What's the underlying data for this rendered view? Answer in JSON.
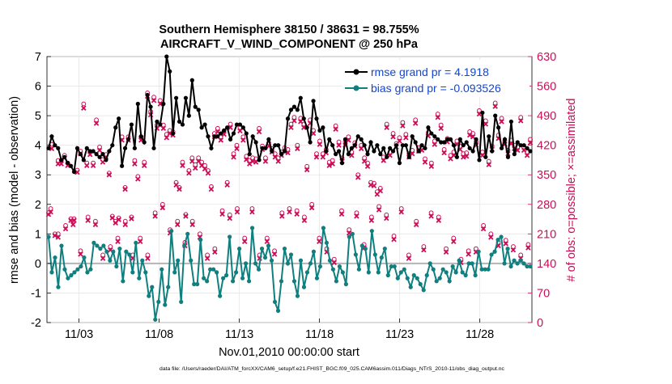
{
  "chart_data": {
    "type": "line",
    "title_line1": "Southern Hemisphere 38150 / 38631 = 98.755%",
    "title_line2": "AIRCRAFT_V_WIND_COMPONENT @ 250 hPa",
    "xlabel": "Nov.01,2010 00:00:00 start",
    "ylabel_left": "rmse and bias (model - observation)",
    "ylabel_right": "# of obs: o=possible; ×=assimilated",
    "footer": "data file: /Users/raeder/DAI/ATM_forcXX/CAM6_setup/f.e21.FHIST_BGC.f09_025.CAM6assim.011/Diags_NTrS_2010-11/obs_diag_output.nc",
    "x_ticks": [
      {
        "day": 3,
        "label": "11/03"
      },
      {
        "day": 8,
        "label": "11/08"
      },
      {
        "day": 13,
        "label": "11/13"
      },
      {
        "day": 18,
        "label": "11/18"
      },
      {
        "day": 23,
        "label": "11/23"
      },
      {
        "day": 28,
        "label": "11/28"
      }
    ],
    "xlim": [
      1,
      31.25
    ],
    "ylim_left": [
      -2,
      7
    ],
    "yticks_left": [
      "-2",
      "-1",
      "0",
      "1",
      "2",
      "3",
      "4",
      "5",
      "6",
      "7"
    ],
    "ylim_right": [
      0,
      630
    ],
    "yticks_right": [
      "0",
      "70",
      "140",
      "210",
      "280",
      "350",
      "420",
      "490",
      "560",
      "630"
    ],
    "colors": {
      "rmse": "#000000",
      "bias": "#0f7f7f",
      "obs": "#cc0e57",
      "legend_text": "#1146d4",
      "zero_line": "#b4b4b4",
      "grid": "#e6e6e6"
    },
    "series": [
      {
        "name": "rmse grand pr = 4.1918",
        "values": [
          3.9,
          4.3,
          4.0,
          3.9,
          3.5,
          3.6,
          3.4,
          3.3,
          3.1,
          3.9,
          3.7,
          3.5,
          3.9,
          3.8,
          3.8,
          3.7,
          3.6,
          3.7,
          3.5,
          3.8,
          4.0,
          4.6,
          4.9,
          3.3,
          3.9,
          4.2,
          4.7,
          3.9,
          5.4,
          4.3,
          4.1,
          5.7,
          5.3,
          3.9,
          4.8,
          4.7,
          5.4,
          7.0,
          6.5,
          4.4,
          5.6,
          4.8,
          4.7,
          5.6,
          5.0,
          6.2,
          5.3,
          5.2,
          4.6,
          4.7,
          4.3,
          3.9,
          4.3,
          4.3,
          4.4,
          4.5,
          4.6,
          4.2,
          4.4,
          4.7,
          4.7,
          4.6,
          4.4,
          3.7,
          4.3,
          4.1,
          3.5,
          3.9,
          3.9,
          4.2,
          3.8,
          4.0,
          4.0,
          3.7,
          3.8,
          4.9,
          5.2,
          5.3,
          5.2,
          5.6,
          4.9,
          4.6,
          4.1,
          5.5,
          4.9,
          4.5,
          4.6,
          3.8,
          4.2,
          4.0,
          3.7,
          3.8,
          3.4,
          4.2,
          3.7,
          3.9,
          4.0,
          4.3,
          4.2,
          4.0,
          3.7,
          4.1,
          3.8,
          4.0,
          3.7,
          3.9,
          3.6,
          3.9,
          3.8,
          4.0,
          3.4,
          4.0,
          4.0,
          3.6,
          4.3,
          4.1,
          3.8,
          4.0,
          3.9,
          4.6,
          4.4,
          4.3,
          4.2,
          4.1,
          4.1,
          4.2,
          4.2,
          4.0,
          3.6,
          4.2,
          4.0,
          4.1,
          3.9,
          3.8,
          4.2,
          3.5,
          5.1,
          3.6,
          4.3,
          3.8,
          5.0,
          4.6,
          3.9,
          4.2,
          3.6,
          4.8,
          3.7,
          4.1,
          4.0,
          4.0,
          3.9,
          3.8
        ]
      },
      {
        "name": "bias grand pr = -0.093526",
        "values": [
          0.9,
          -0.3,
          0.2,
          -0.8,
          0.6,
          -0.2,
          -0.5,
          -0.4,
          -0.3,
          -0.2,
          -0.1,
          0.2,
          -0.3,
          -0.2,
          0.7,
          0.6,
          0.5,
          0.6,
          0.4,
          0.1,
          0.4,
          -0.1,
          0.5,
          -0.6,
          0.4,
          0.3,
          -0.3,
          0.7,
          -0.5,
          0.1,
          -0.3,
          -1.1,
          -0.8,
          -1.9,
          -1.3,
          -0.2,
          -1.4,
          -0.8,
          1.1,
          -0.3,
          0.1,
          -1.3,
          0.6,
          1.0,
          0.1,
          -0.7,
          -0.7,
          0.8,
          -0.5,
          -0.6,
          -0.2,
          -0.2,
          -0.3,
          -1.1,
          -0.5,
          -0.4,
          0.9,
          -0.6,
          -0.3,
          0.5,
          -0.5,
          0.0,
          -0.6,
          1.2,
          0.0,
          -0.2,
          0.5,
          0.2,
          0.6,
          0.1,
          -1.3,
          -1.6,
          -0.6,
          0.5,
          0.0,
          0.3,
          -0.6,
          -1.1,
          0.1,
          -0.8,
          -0.3,
          0.0,
          0.4,
          -0.5,
          -0.1,
          1.2,
          0.7,
          0.1,
          -0.2,
          -0.6,
          -0.1,
          -0.3,
          -0.7,
          0.9,
          1.0,
          0.3,
          -0.2,
          0.6,
          0.5,
          -0.3,
          1.1,
          0.3,
          -0.3,
          0.2,
          0.5,
          -0.4,
          -0.1,
          -0.1,
          -0.5,
          -0.3,
          -0.2,
          -0.5,
          -0.8,
          -0.4,
          -0.5,
          -0.7,
          -0.9,
          -0.4,
          0.0,
          -0.2,
          -0.6,
          -0.5,
          -0.2,
          -0.3,
          -0.6,
          -0.1,
          -0.3,
          0.1,
          -0.3,
          -0.4,
          0.0,
          0.0,
          -0.4,
          0.4,
          -0.2,
          -0.2,
          -0.2,
          0.3,
          0.4,
          0.8,
          0.9,
          0.0,
          0.5,
          -0.1,
          0.1,
          0.0,
          0.1,
          0.0,
          -0.1,
          -0.1
        ]
      }
    ],
    "obs_possible": [
      260,
      422,
      210,
      384,
      384,
      396,
      378,
      246,
      246,
      361,
      406,
      518,
      378,
      404,
      378,
      480,
      416,
      386,
      398,
      354,
      252,
      240,
      248,
      440,
      320,
      440,
      250,
      384,
      346,
      440,
      380,
      544,
      500,
      534,
      468,
      526,
      468,
      446,
      455,
      452,
      332,
      320,
      380,
      256,
      360,
      390,
      374,
      390,
      380,
      372,
      360,
      322,
      448,
      460,
      440,
      454,
      332,
      470,
      400,
      420,
      462,
      440,
      394,
      384,
      390,
      388,
      460,
      418,
      390,
      426,
      412,
      400,
      390,
      404,
      414,
      410,
      470,
      486,
      420,
      484,
      470,
      370,
      480,
      455,
      400,
      430,
      400,
      410,
      380,
      384,
      466,
      428,
      390,
      428,
      440,
      404,
      426,
      350,
      420,
      390,
      378,
      332,
      330,
      310,
      318,
      392,
      470,
      404,
      448,
      424,
      438,
      474,
      446,
      400,
      408,
      480,
      414,
      416,
      388,
      450,
      378,
      430,
      494,
      468,
      410,
      436,
      396,
      404,
      430,
      418,
      400,
      402,
      452,
      448,
      428,
      502,
      404,
      478,
      382,
      418,
      520,
      444,
      484,
      430,
      408,
      432,
      420,
      416,
      486,
      416,
      404,
      434
    ],
    "obs_assimilated": [
      256,
      412,
      206,
      376,
      376,
      390,
      372,
      242,
      242,
      356,
      400,
      508,
      372,
      398,
      372,
      472,
      408,
      380,
      392,
      350,
      248,
      236,
      244,
      432,
      316,
      432,
      246,
      376,
      340,
      432,
      372,
      536,
      492,
      526,
      460,
      518,
      460,
      438,
      448,
      444,
      326,
      316,
      372,
      252,
      354,
      382,
      366,
      382,
      372,
      364,
      354,
      316,
      440,
      452,
      432,
      446,
      326,
      462,
      392,
      412,
      454,
      432,
      386,
      376,
      382,
      380,
      452,
      410,
      382,
      418,
      404,
      392,
      382,
      396,
      406,
      402,
      462,
      478,
      412,
      476,
      462,
      362,
      472,
      448,
      392,
      422,
      392,
      402,
      372,
      376,
      458,
      420,
      382,
      420,
      432,
      396,
      418,
      344,
      412,
      382,
      370,
      326,
      324,
      304,
      312,
      384,
      462,
      396,
      440,
      416,
      430,
      466,
      438,
      392,
      400,
      472,
      406,
      408,
      380,
      442,
      370,
      422,
      486,
      460,
      402,
      428,
      388,
      396,
      422,
      410,
      392,
      394,
      444,
      440,
      420,
      494,
      396,
      470,
      374,
      410,
      512,
      436,
      476,
      422,
      400,
      424,
      412,
      408,
      478,
      408,
      396,
      426
    ],
    "obs_low_possible": [
      270,
      210,
      230,
      240,
      170,
      250,
      240,
      160,
      180,
      200,
      240,
      160,
      200,
      160,
      260,
      280,
      220,
      240,
      190,
      240,
      210,
      160,
      175,
      265,
      255,
      270,
      200,
      270,
      160,
      200,
      170,
      260,
      270,
      265,
      250,
      280,
      200,
      175,
      150,
      265,
      220,
      260,
      185,
      250,
      275,
      255,
      205,
      270,
      160,
      240,
      180,
      260,
      250,
      175,
      200,
      150,
      170,
      175,
      230,
      210,
      190,
      195,
      180,
      160,
      185
    ],
    "obs_low_assimilated": [
      262,
      202,
      222,
      232,
      162,
      242,
      232,
      152,
      172,
      192,
      232,
      152,
      192,
      152,
      252,
      272,
      212,
      232,
      182,
      232,
      202,
      152,
      167,
      257,
      247,
      262,
      192,
      262,
      152,
      192,
      162,
      252,
      262,
      257,
      242,
      272,
      192,
      167,
      142,
      257,
      212,
      252,
      177,
      242,
      267,
      247,
      197,
      262,
      152,
      232,
      172,
      252,
      242,
      167,
      192,
      142,
      162,
      167,
      222,
      202,
      182,
      187,
      172,
      152,
      177
    ]
  }
}
